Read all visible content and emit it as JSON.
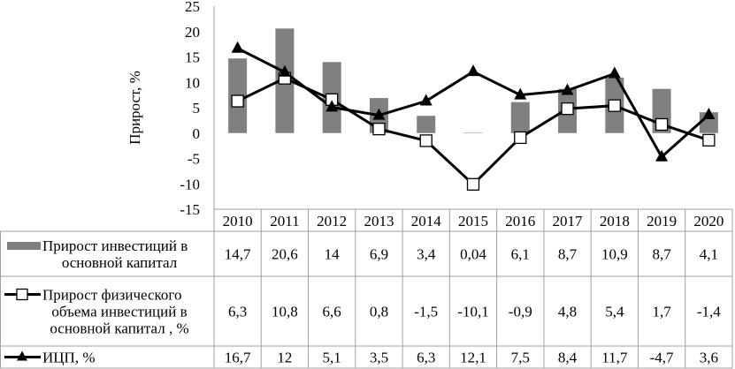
{
  "chart_data": {
    "type": "bar",
    "title": "",
    "xlabel": "",
    "ylabel": "Прирост, %",
    "ylim": [
      -15,
      25
    ],
    "yticks": [
      25,
      20,
      15,
      10,
      5,
      0,
      -5,
      -10,
      -15
    ],
    "categories": [
      "2010",
      "2011",
      "2012",
      "2013",
      "2014",
      "2015",
      "2016",
      "2017",
      "2018",
      "2019",
      "2020"
    ],
    "grid": false,
    "legend": "data-table-left",
    "series": [
      {
        "name": "Прирост инвестиций в основной капитал",
        "label_lines": [
          "Прирост инвестиций в",
          "основной капитал"
        ],
        "kind": "bar",
        "color": "#808080",
        "values": [
          14.7,
          20.6,
          14,
          6.9,
          3.4,
          0.04,
          6.1,
          8.7,
          10.9,
          8.7,
          4.1
        ],
        "display": [
          "14,7",
          "20,6",
          "14",
          "6,9",
          "3,4",
          "0,04",
          "6,1",
          "8,7",
          "10,9",
          "8,7",
          "4,1"
        ]
      },
      {
        "name": "Прирост физического объема инвестиций в основной капитал , %",
        "label_lines": [
          "Прирост физического",
          "объема инвестиций в",
          "основной капитал , %"
        ],
        "kind": "line-square",
        "color": "#000000",
        "values": [
          6.3,
          10.8,
          6.6,
          0.8,
          -1.5,
          -10.1,
          -0.9,
          4.8,
          5.4,
          1.7,
          -1.4
        ],
        "display": [
          "6,3",
          "10,8",
          "6,6",
          "0,8",
          "-1,5",
          "-10,1",
          "-0,9",
          "4,8",
          "5,4",
          "1,7",
          "-1,4"
        ]
      },
      {
        "name": "ИЦП, %",
        "label_lines": [
          "ИЦП, %"
        ],
        "kind": "line-triangle",
        "color": "#000000",
        "values": [
          16.7,
          12,
          5.1,
          3.5,
          6.3,
          12.1,
          7.5,
          8.4,
          11.7,
          -4.7,
          3.6
        ],
        "display": [
          "16,7",
          "12",
          "5,1",
          "3,5",
          "6,3",
          "12,1",
          "7,5",
          "8,4",
          "11,7",
          "-4,7",
          "3,6"
        ]
      }
    ]
  }
}
